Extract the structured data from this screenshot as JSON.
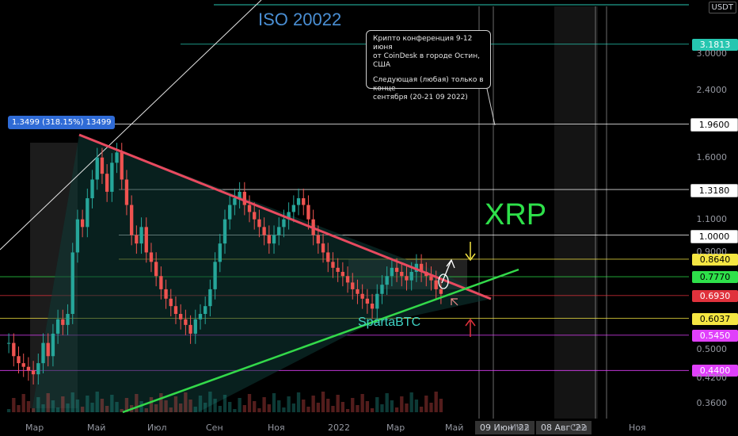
{
  "chart_data": {
    "type": "candlestick",
    "symbol_currency": "USDT",
    "y_scale": "log",
    "ylim": [
      0.35,
      4.0
    ],
    "x_labels": [
      "Мар",
      "Май",
      "Июл",
      "Сен",
      "Ноя",
      "2022",
      "Мар",
      "Май",
      "09 Июн '22",
      "Июл",
      "08 Авг '22",
      "Сен",
      "Ноя"
    ],
    "x_labels_boxed": [
      "09 Июн '22",
      "08 Авг '22"
    ],
    "y_ticks": [
      "3.0000",
      "2.4000",
      "1.6000",
      "1.1000",
      "0.9000",
      "0.5000",
      "0.4200",
      "0.3600"
    ],
    "price_levels": [
      {
        "label": "3.1813",
        "value": 3.1813,
        "color": "#26c6b0"
      },
      {
        "label": "1.9600",
        "value": 1.96,
        "color": "#ffffff"
      },
      {
        "label": "1.3180",
        "value": 1.318,
        "color": "#ffffff"
      },
      {
        "label": "1.0000",
        "value": 1.0,
        "color": "#ffffff"
      },
      {
        "label": "0.8640",
        "value": 0.864,
        "color": "#f5e642"
      },
      {
        "label": "0.7770",
        "value": 0.777,
        "color": "#2ee04a"
      },
      {
        "label": "0.6930",
        "value": 0.693,
        "color": "#e0323c"
      },
      {
        "label": "0.6037",
        "value": 0.6037,
        "color": "#f5e642"
      },
      {
        "label": "0.5450",
        "value": 0.545,
        "color": "#e040fb"
      },
      {
        "label": "0.4400",
        "value": 0.44,
        "color": "#e040fb"
      }
    ],
    "annotations": {
      "iso": "ISO 20022",
      "xrp": "XRP",
      "author": "SpartaBTC",
      "measure": "1.3499 (318.15%) 13499",
      "callout_line1": "Крипто конференция 9-12 июня",
      "callout_line2": "от CoinDesk в городе Остин, США",
      "callout_line3": "Следующая (любая) только в конце",
      "callout_line4": "сентября (20-21 09 2022)"
    },
    "candles_close": [
      0.52,
      0.48,
      0.46,
      0.45,
      0.44,
      0.43,
      0.46,
      0.52,
      0.48,
      0.55,
      0.6,
      0.58,
      0.62,
      0.9,
      1.1,
      1.05,
      1.25,
      1.4,
      1.6,
      1.45,
      1.3,
      1.55,
      1.65,
      1.4,
      1.2,
      1.0,
      0.95,
      1.05,
      0.9,
      0.85,
      0.78,
      0.72,
      0.68,
      0.65,
      0.62,
      0.6,
      0.58,
      0.55,
      0.6,
      0.62,
      0.65,
      0.72,
      0.85,
      0.95,
      1.1,
      1.2,
      1.25,
      1.3,
      1.2,
      1.15,
      1.1,
      1.05,
      1.0,
      0.95,
      1.0,
      1.05,
      1.1,
      1.15,
      1.2,
      1.25,
      1.2,
      1.1,
      1.0,
      0.95,
      0.9,
      0.85,
      0.82,
      0.8,
      0.78,
      0.75,
      0.72,
      0.7,
      0.68,
      0.66,
      0.64,
      0.7,
      0.74,
      0.78,
      0.82,
      0.8,
      0.78,
      0.76,
      0.8,
      0.84,
      0.8,
      0.78,
      0.76,
      0.72,
      0.7
    ],
    "grid": false
  }
}
